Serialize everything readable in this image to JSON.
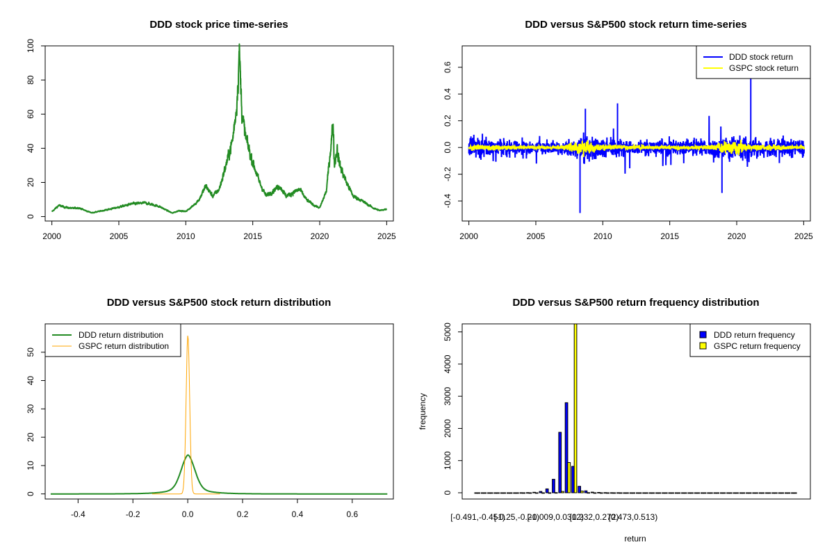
{
  "chart_data": [
    {
      "id": "price",
      "type": "line",
      "title": "DDD stock price time-series",
      "xlabel": "",
      "ylabel": "",
      "xlim": [
        1999.5,
        2025.5
      ],
      "ylim": [
        -2.6,
        100
      ],
      "xticks": [
        2000,
        2005,
        2010,
        2015,
        2020,
        2025
      ],
      "yticks": [
        0,
        20,
        40,
        60,
        80,
        100
      ],
      "ytick_labels": [
        "0",
        "20",
        "40",
        "60",
        "80",
        "100"
      ],
      "series": [
        {
          "name": "DDD stock price",
          "color": "#228B22",
          "x": [
            2000.0,
            2000.5,
            2001.0,
            2001.5,
            2002.0,
            2002.5,
            2003.0,
            2004.0,
            2005.0,
            2006.0,
            2007.0,
            2008.0,
            2008.5,
            2009.0,
            2009.5,
            2010.0,
            2010.5,
            2011.0,
            2011.5,
            2012.0,
            2012.5,
            2013.0,
            2013.5,
            2013.8,
            2014.0,
            2014.2,
            2014.5,
            2015.0,
            2015.5,
            2016.0,
            2016.5,
            2017.0,
            2017.5,
            2018.0,
            2018.5,
            2019.0,
            2019.5,
            2020.0,
            2020.5,
            2021.0,
            2021.1,
            2021.3,
            2021.5,
            2022.0,
            2022.5,
            2023.0,
            2023.5,
            2024.0,
            2024.5,
            2025.0
          ],
          "y": [
            2.8,
            6.5,
            5.5,
            4.8,
            5.2,
            3.5,
            2.2,
            3.8,
            5.5,
            7.5,
            8.0,
            6.0,
            4.0,
            2.0,
            3.5,
            3.0,
            6.0,
            10.0,
            18.0,
            12.0,
            16.0,
            30.0,
            45.0,
            65.0,
            96.0,
            60.0,
            45.0,
            32.0,
            20.0,
            12.0,
            15.0,
            18.0,
            12.0,
            14.0,
            16.0,
            10.0,
            7.0,
            5.0,
            15.0,
            55.0,
            30.0,
            40.0,
            30.0,
            20.0,
            12.0,
            10.0,
            7.5,
            5.0,
            3.5,
            4.5
          ]
        }
      ]
    },
    {
      "id": "returns",
      "type": "line",
      "title": "DDD versus S&P500 stock return time-series",
      "xlabel": "",
      "ylabel": "",
      "xlim": [
        1999.5,
        2025.5
      ],
      "ylim": [
        -0.55,
        0.76
      ],
      "xticks": [
        2000,
        2005,
        2010,
        2015,
        2020,
        2025
      ],
      "yticks": [
        -0.4,
        -0.2,
        0.0,
        0.2,
        0.4,
        0.6
      ],
      "ytick_labels": [
        "-0.4",
        "-0.2",
        "0.0",
        "0.2",
        "0.4",
        "0.6"
      ],
      "legend_position": "top-right",
      "series": [
        {
          "name": "DDD stock return",
          "color": "#0000FF",
          "volatility_x": [
            2000,
            2002,
            2004,
            2007,
            2008.7,
            2009.5,
            2011,
            2013,
            2015,
            2018,
            2020.2,
            2021.0,
            2022,
            2025
          ],
          "volatility_y": [
            0.07,
            0.05,
            0.04,
            0.035,
            0.08,
            0.06,
            0.045,
            0.04,
            0.045,
            0.045,
            0.07,
            0.07,
            0.05,
            0.05
          ],
          "spike_x": [
            2008.3,
            2008.7,
            2011.1,
            2018.9,
            2021.05
          ],
          "spike_y": [
            -0.49,
            0.29,
            0.33,
            -0.34,
            0.52
          ]
        },
        {
          "name": "GSPC stock return",
          "color": "#FFFF00",
          "volatility_x": [
            2000,
            2002,
            2004,
            2007,
            2008.7,
            2009.5,
            2011,
            2013,
            2015,
            2018,
            2020.2,
            2021.0,
            2022,
            2025
          ],
          "volatility_y": [
            0.014,
            0.014,
            0.009,
            0.009,
            0.045,
            0.02,
            0.013,
            0.009,
            0.01,
            0.011,
            0.045,
            0.012,
            0.015,
            0.01
          ]
        }
      ]
    },
    {
      "id": "density",
      "type": "line",
      "title": "DDD versus S&P500 stock return distribution",
      "xlabel": "",
      "ylabel": "",
      "xlim": [
        -0.52,
        0.75
      ],
      "ylim": [
        -1.8,
        60
      ],
      "xticks": [
        -0.4,
        -0.2,
        0.0,
        0.2,
        0.4,
        0.6
      ],
      "xtick_labels": [
        "-0.4",
        "-0.2",
        "0.0",
        "0.2",
        "0.4",
        "0.6"
      ],
      "yticks": [
        0,
        10,
        20,
        30,
        40,
        50
      ],
      "ytick_labels": [
        "0",
        "10",
        "20",
        "30",
        "40",
        "50"
      ],
      "legend_position": "top-left",
      "series": [
        {
          "name": "DDD return distribution",
          "color": "#228B22",
          "peak": 13.8,
          "center": 0.001,
          "sd": 0.025,
          "tail": 0.055,
          "x_range": [
            -0.5,
            0.73
          ]
        },
        {
          "name": "GSPC return distribution",
          "color": "#FFA500",
          "peak": 56,
          "center": 0.0005,
          "sd": 0.0065,
          "tail": 0.0,
          "x_range": [
            -0.13,
            0.12
          ]
        }
      ]
    },
    {
      "id": "histogram",
      "type": "bar",
      "title": "DDD versus S&P500 return frequency distribution",
      "xlabel": "return",
      "ylabel": "frequency",
      "ylim": [
        0,
        5250
      ],
      "yticks": [
        0,
        1000,
        2000,
        3000,
        4000,
        5000
      ],
      "ytick_labels": [
        "0",
        "1000",
        "2000",
        "3000",
        "4000",
        "5000"
      ],
      "xtick_labels": [
        "[-0.491,-0.451)",
        "[-0.25,-0.21)",
        "[-0.009,0.0312)",
        "[0.232,0.272)",
        "[0.473,0.513)"
      ],
      "xtick_bins": [
        0,
        6,
        12,
        18,
        24
      ],
      "legend_position": "top-right",
      "series": [
        {
          "name": "DDD return frequency",
          "color": "#0000FF",
          "values": [
            1,
            0,
            0,
            0,
            0,
            0,
            1,
            2,
            5,
            15,
            40,
            120,
            420,
            1880,
            2800,
            820,
            200,
            60,
            20,
            10,
            5,
            3,
            2,
            1,
            1,
            1,
            1,
            0,
            0,
            0,
            0,
            0,
            0,
            0,
            0,
            0,
            0,
            0,
            0,
            0,
            0,
            0,
            0,
            0,
            0,
            0,
            0,
            0,
            0,
            0
          ]
        },
        {
          "name": "GSPC return frequency",
          "color": "#FFFF00",
          "values": [
            0,
            0,
            0,
            0,
            0,
            0,
            0,
            0,
            0,
            0,
            0,
            1,
            5,
            40,
            940,
            5300,
            55,
            5,
            1,
            0,
            0,
            0,
            0,
            0,
            0,
            0,
            0,
            0,
            0,
            0,
            0,
            0,
            0,
            0,
            0,
            0,
            0,
            0,
            0,
            0,
            0,
            0,
            0,
            0,
            0,
            0,
            0,
            0,
            0,
            0
          ]
        }
      ]
    }
  ]
}
